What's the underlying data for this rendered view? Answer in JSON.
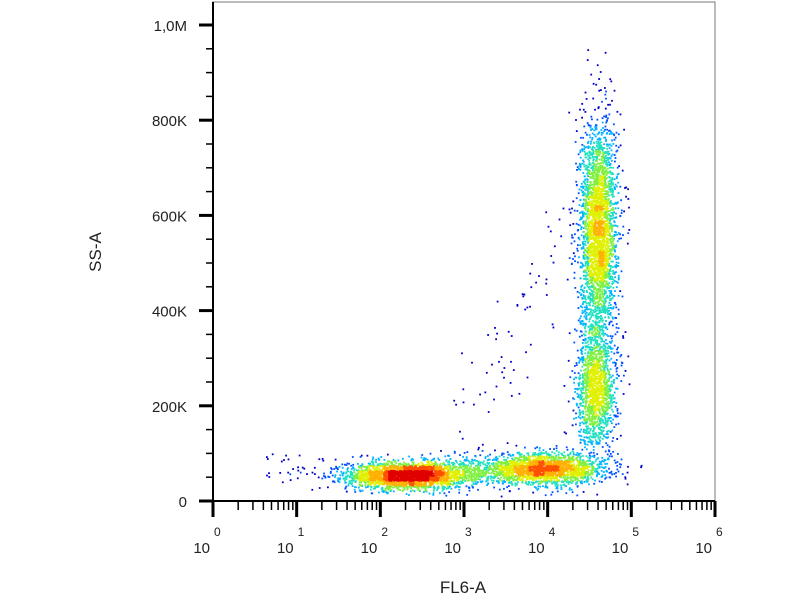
{
  "chart_data": {
    "type": "scatter",
    "subtype": "flow-cytometry density dot plot",
    "title": "",
    "xlabel": "FL6-A",
    "ylabel": "SS-A",
    "x_scale": "log",
    "x_range": [
      1,
      1000000
    ],
    "x_ticks": [
      {
        "base": "10",
        "exp": "0",
        "value": 1
      },
      {
        "base": "10",
        "exp": "1",
        "value": 10
      },
      {
        "base": "10",
        "exp": "2",
        "value": 100
      },
      {
        "base": "10",
        "exp": "3",
        "value": 1000
      },
      {
        "base": "10",
        "exp": "4",
        "value": 10000
      },
      {
        "base": "10",
        "exp": "5",
        "value": 100000
      },
      {
        "base": "10",
        "exp": "6",
        "value": 1000000
      }
    ],
    "y_scale": "linear",
    "y_range": [
      0,
      1000000
    ],
    "y_ticks": [
      {
        "label": "0",
        "value": 0
      },
      {
        "label": "200K",
        "value": 200000
      },
      {
        "label": "400K",
        "value": 400000
      },
      {
        "label": "600K",
        "value": 600000
      },
      {
        "label": "800K",
        "value": 800000
      },
      {
        "label": "1,0M",
        "value": 1000000
      }
    ],
    "grid": false,
    "legend": "none",
    "colormap": [
      "#0000c8",
      "#0050ff",
      "#00b4ff",
      "#20e0c0",
      "#80f040",
      "#e0f000",
      "#ffb000",
      "#ff5000",
      "#e00000"
    ],
    "populations": [
      {
        "x_center": 200,
        "y_center": 55000,
        "x_spread_decades": 0.35,
        "y_spread": 14000,
        "weight": 0.26
      },
      {
        "x_center": 9000,
        "y_center": 70000,
        "x_spread_decades": 0.38,
        "y_spread": 16000,
        "weight": 0.17
      },
      {
        "x_center": 40000,
        "y_center": 580000,
        "x_spread_decades": 0.11,
        "y_spread": 110000,
        "weight": 0.3
      },
      {
        "x_center": 38000,
        "y_center": 240000,
        "x_spread_decades": 0.12,
        "y_spread": 60000,
        "weight": 0.12
      }
    ],
    "sparse_diagonal": {
      "x_from": 1000,
      "x_to": 20000,
      "y_from": 150000,
      "y_to": 600000
    }
  }
}
